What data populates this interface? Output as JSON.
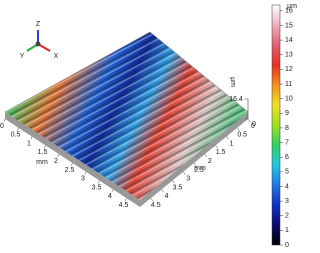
{
  "chart_data": {
    "type": "surface3d",
    "triad": {
      "z": "Z",
      "y": "Y",
      "x": "X"
    },
    "xaxis": {
      "label": "mm",
      "lim": [
        0,
        5
      ],
      "ticks": [
        0,
        0.5,
        1,
        1.5,
        2,
        2.5,
        3,
        3.5,
        4,
        4.5
      ]
    },
    "yaxis": {
      "label": "mm",
      "lim": [
        0,
        5
      ],
      "ticks": [
        0,
        0.5,
        1,
        1.5,
        2,
        2.5,
        3,
        3.5,
        4,
        4.5
      ]
    },
    "zaxis": {
      "label": "µm",
      "lim": [
        0,
        16.4
      ],
      "ticks": [
        0,
        16.4
      ]
    },
    "colorbar": {
      "unit": "µm",
      "lim": [
        0,
        16.4
      ],
      "ticks": [
        0,
        1,
        2,
        3,
        4,
        5,
        6,
        7,
        8,
        9,
        10,
        11,
        12,
        13,
        14,
        15,
        16
      ],
      "colors": [
        "#000000",
        "#0a0a6e",
        "#1030c8",
        "#1e78e6",
        "#20c8e0",
        "#30d060",
        "#a0e020",
        "#f0e020",
        "#f59020",
        "#e83020",
        "#e06070",
        "#f0b0c0",
        "#ffffff"
      ]
    }
  }
}
